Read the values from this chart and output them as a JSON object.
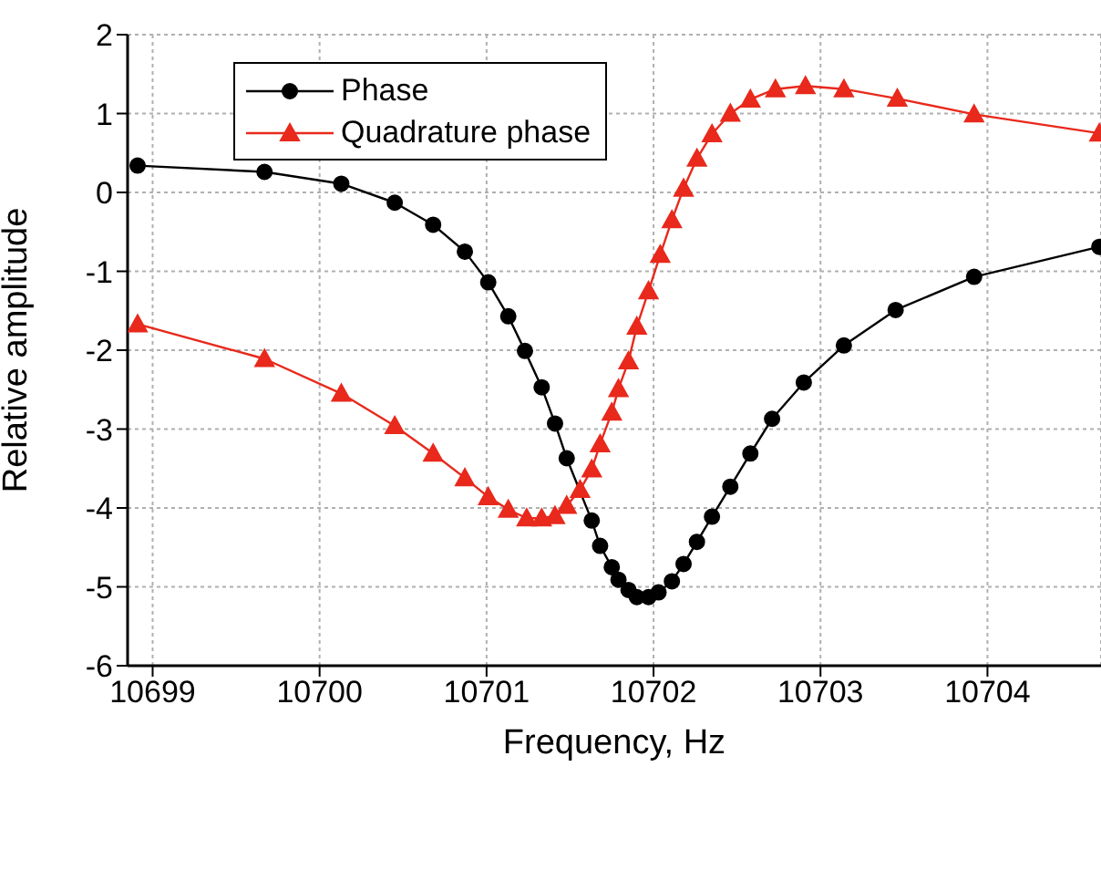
{
  "chart_data": {
    "type": "line",
    "xlabel": "Frequency, Hz",
    "ylabel": "Relative amplitude",
    "xlim": [
      10698.85,
      10704.68
    ],
    "xticks": [
      10699,
      10700,
      10701,
      10702,
      10703,
      10704
    ],
    "ylim": [
      -6,
      2
    ],
    "yticks": [
      -6,
      -5,
      -4,
      -3,
      -2,
      -1,
      0,
      1,
      2
    ],
    "grid": true,
    "legend": "top left",
    "line_style": "solid",
    "series": [
      {
        "name": "Phase",
        "color": "#000000",
        "marker": "circle",
        "x": [
          10698.91,
          10699.67,
          10700.13,
          10700.45,
          10700.68,
          10700.87,
          10701.01,
          10701.13,
          10701.23,
          10701.33,
          10701.41,
          10701.48,
          10701.56,
          10701.63,
          10701.68,
          10701.75,
          10701.79,
          10701.85,
          10701.9,
          10701.97,
          10702.03,
          10702.11,
          10702.18,
          10702.26,
          10702.35,
          10702.46,
          10702.58,
          10702.71,
          10702.9,
          10703.14,
          10703.45,
          10703.92,
          10704.67
        ],
        "values": [
          0.34,
          0.26,
          0.11,
          -0.13,
          -0.41,
          -0.75,
          -1.14,
          -1.57,
          -2.01,
          -2.47,
          -2.93,
          -3.37,
          null,
          -4.16,
          -4.48,
          -4.75,
          -4.91,
          -5.04,
          -5.13,
          -5.13,
          -5.07,
          -4.93,
          -4.71,
          -4.43,
          -4.11,
          -3.73,
          -3.31,
          -2.87,
          -2.41,
          -1.94,
          -1.49,
          -1.07,
          -0.69
        ]
      },
      {
        "name": "Quadrature phase",
        "color": "#e8291c",
        "marker": "triangle",
        "x": [
          10698.91,
          10699.67,
          10700.13,
          10700.45,
          10700.68,
          10700.87,
          10701.01,
          10701.13,
          10701.24,
          10701.33,
          10701.41,
          10701.48,
          10701.56,
          10701.63,
          10701.68,
          10701.75,
          10701.79,
          10701.85,
          10701.9,
          10701.97,
          10702.04,
          10702.11,
          10702.18,
          10702.26,
          10702.35,
          10702.46,
          10702.58,
          10702.73,
          10702.91,
          10703.14,
          10703.46,
          10703.92,
          10704.67
        ],
        "values": [
          -1.67,
          -2.11,
          -2.55,
          -2.96,
          -3.31,
          -3.62,
          -3.86,
          -4.02,
          -4.13,
          -4.13,
          -4.1,
          -3.97,
          -3.77,
          -3.51,
          -3.19,
          -2.79,
          -2.49,
          -2.14,
          -1.7,
          -1.25,
          -0.79,
          -0.35,
          0.05,
          0.43,
          0.74,
          1.0,
          1.18,
          1.31,
          1.35,
          1.31,
          1.19,
          0.99,
          0.75
        ]
      }
    ]
  }
}
